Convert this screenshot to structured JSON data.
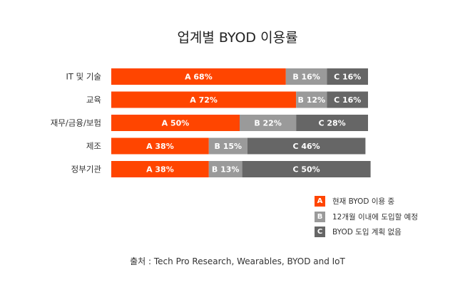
{
  "chart_data": {
    "type": "bar",
    "orientation": "horizontal",
    "stacked": true,
    "title": "업계별 BYOD 이용률",
    "categories": [
      "IT 및 기술",
      "교육",
      "재무/금융/보험",
      "제조",
      "정부기관"
    ],
    "series": [
      {
        "name": "현재 BYOD 이용 중",
        "key": "A",
        "color": "#ff4500",
        "values": [
          68,
          72,
          50,
          38,
          38
        ]
      },
      {
        "name": "12개월 이내에 도입할 예정",
        "key": "B",
        "color": "#9a9a9a",
        "values": [
          16,
          12,
          22,
          15,
          13
        ]
      },
      {
        "name": "BYOD 도입 계획 없음",
        "key": "C",
        "color": "#666666",
        "values": [
          16,
          16,
          28,
          46,
          50
        ]
      }
    ],
    "segment_labels": [
      [
        "A 68%",
        "B 16%",
        "C 16%"
      ],
      [
        "A 72%",
        "B 12%",
        "C 16%"
      ],
      [
        "A 50%",
        "B 22%",
        "C 28%"
      ],
      [
        "A 38%",
        "B 15%",
        "C 46%"
      ],
      [
        "A 38%",
        "B 13%",
        "C 50%"
      ]
    ],
    "xlim": [
      0,
      100
    ],
    "grid": false,
    "legend_position": "bottom-right"
  },
  "source": "출처  : Tech Pro Research, Wearables, BYOD and IoT"
}
